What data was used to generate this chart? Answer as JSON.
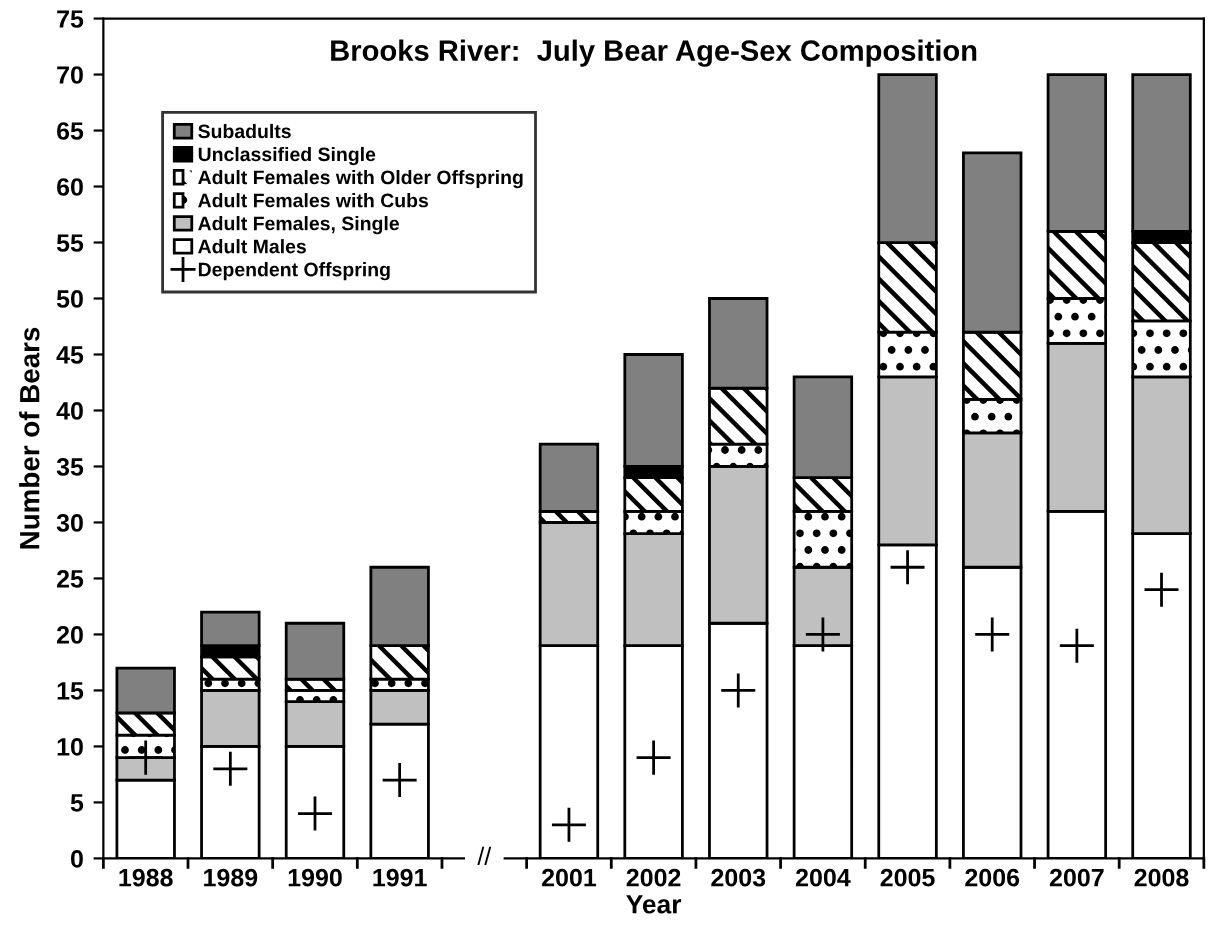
{
  "chart_data": {
    "type": "bar",
    "stacked": true,
    "title": "Brooks River:  July Bear Age-Sex Composition",
    "xlabel": "Year",
    "ylabel": "Number of Bears",
    "categories": [
      "1988",
      "1989",
      "1990",
      "1991",
      null,
      "2001",
      "2002",
      "2003",
      "2004",
      "2005",
      "2006",
      "2007",
      "2008"
    ],
    "series": [
      {
        "name": "Adult Males",
        "color": "#ffffff",
        "values": [
          7,
          10,
          10,
          12,
          null,
          19,
          19,
          21,
          19,
          28,
          26,
          31,
          29
        ]
      },
      {
        "name": "Adult Females, Single",
        "color": "#c0c0c0",
        "values": [
          2,
          5,
          4,
          3,
          null,
          11,
          10,
          14,
          7,
          15,
          12,
          15,
          14
        ]
      },
      {
        "name": "Adult Females with Cubs",
        "color": "#ffffff",
        "values": [
          2,
          1,
          1,
          1,
          null,
          0,
          2,
          2,
          5,
          4,
          3,
          4,
          5
        ]
      },
      {
        "name": "Adult Females with Older Offspring",
        "color": "#ffffff",
        "values": [
          2,
          2,
          1,
          3,
          null,
          1,
          3,
          5,
          3,
          8,
          6,
          6,
          7
        ]
      },
      {
        "name": "Unclassified Single",
        "color": "#000000",
        "values": [
          0,
          1,
          0,
          0,
          null,
          0,
          1,
          0,
          0,
          0,
          0,
          0,
          1
        ]
      },
      {
        "name": "Subadults",
        "color": "#808080",
        "values": [
          4,
          3,
          5,
          7,
          null,
          6,
          10,
          8,
          9,
          15,
          16,
          14,
          14
        ]
      },
      {
        "name": "Dependent Offspring",
        "type": "scatter",
        "color": "#000000",
        "marker": "cross",
        "values": [
          9,
          8,
          4,
          7,
          null,
          3,
          9,
          15,
          20,
          26,
          20,
          19,
          24
        ]
      }
    ],
    "annotations": [
      "//"
    ],
    "ylim": [
      0,
      75
    ],
    "yticks": [
      0,
      5,
      10,
      15,
      20,
      25,
      30,
      35,
      40,
      45,
      50,
      55,
      60,
      65,
      70,
      75
    ],
    "grid": false,
    "legend": "top left"
  }
}
